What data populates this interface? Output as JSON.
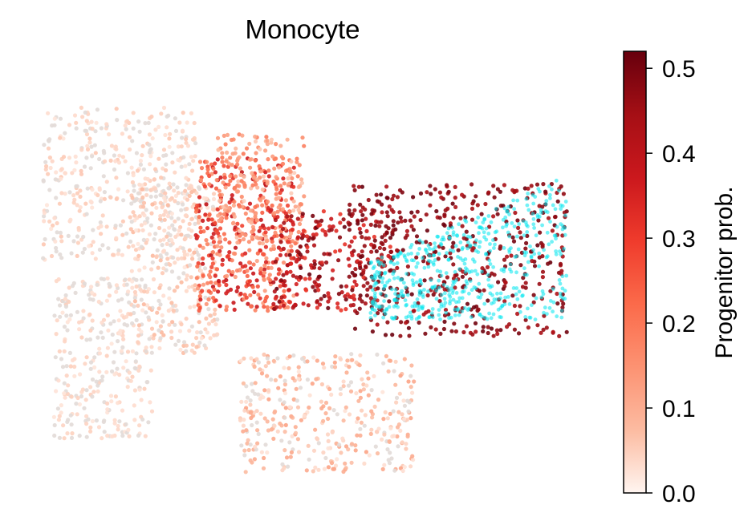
{
  "chart_data": {
    "type": "scatter",
    "title": "Monocyte",
    "xlabel": "",
    "ylabel": "",
    "axes_visible": false,
    "grid": false,
    "highlight_color": "#00e5ee",
    "colormap": {
      "name": "Reds",
      "stops": [
        "#fff5f0",
        "#fcbba1",
        "#fc9272",
        "#fb6a4a",
        "#ef3b2c",
        "#cb181d",
        "#a50f15",
        "#67000d"
      ]
    },
    "background_cell_color": "#e2dad7",
    "colorbar": {
      "label": "Progenitor prob.",
      "range": [
        0.0,
        0.52
      ],
      "ticks": [
        0.0,
        0.1,
        0.2,
        0.3,
        0.4,
        0.5
      ],
      "tick_labels": [
        "0.0",
        "0.1",
        "0.2",
        "0.3",
        "0.4",
        "0.5"
      ],
      "placement": "right"
    },
    "clusters": [
      {
        "x": [
          0.02,
          0.3
        ],
        "y": [
          0.52,
          0.88
        ],
        "n": 420,
        "value": [
          0.0,
          0.06
        ]
      },
      {
        "x": [
          0.04,
          0.22
        ],
        "y": [
          0.1,
          0.48
        ],
        "n": 320,
        "value": [
          0.0,
          0.05
        ]
      },
      {
        "x": [
          0.18,
          0.34
        ],
        "y": [
          0.3,
          0.7
        ],
        "n": 300,
        "value": [
          0.0,
          0.08
        ]
      },
      {
        "x": [
          0.3,
          0.48
        ],
        "y": [
          0.4,
          0.76
        ],
        "n": 420,
        "value": [
          0.12,
          0.4
        ]
      },
      {
        "x": [
          0.34,
          0.5
        ],
        "y": [
          0.55,
          0.82
        ],
        "n": 200,
        "value": [
          0.05,
          0.2
        ]
      },
      {
        "x": [
          0.38,
          0.7
        ],
        "y": [
          0.02,
          0.3
        ],
        "n": 380,
        "value": [
          0.0,
          0.12
        ]
      },
      {
        "x": [
          0.44,
          0.66
        ],
        "y": [
          0.4,
          0.64
        ],
        "n": 260,
        "value": [
          0.3,
          0.52
        ]
      },
      {
        "x": [
          0.58,
          0.98
        ],
        "y": [
          0.34,
          0.7
        ],
        "n": 460,
        "value": [
          0.42,
          0.52
        ]
      }
    ],
    "highlight_cluster": {
      "x": [
        0.62,
        0.98
      ],
      "y": [
        0.38,
        0.72
      ],
      "n": 520
    }
  }
}
